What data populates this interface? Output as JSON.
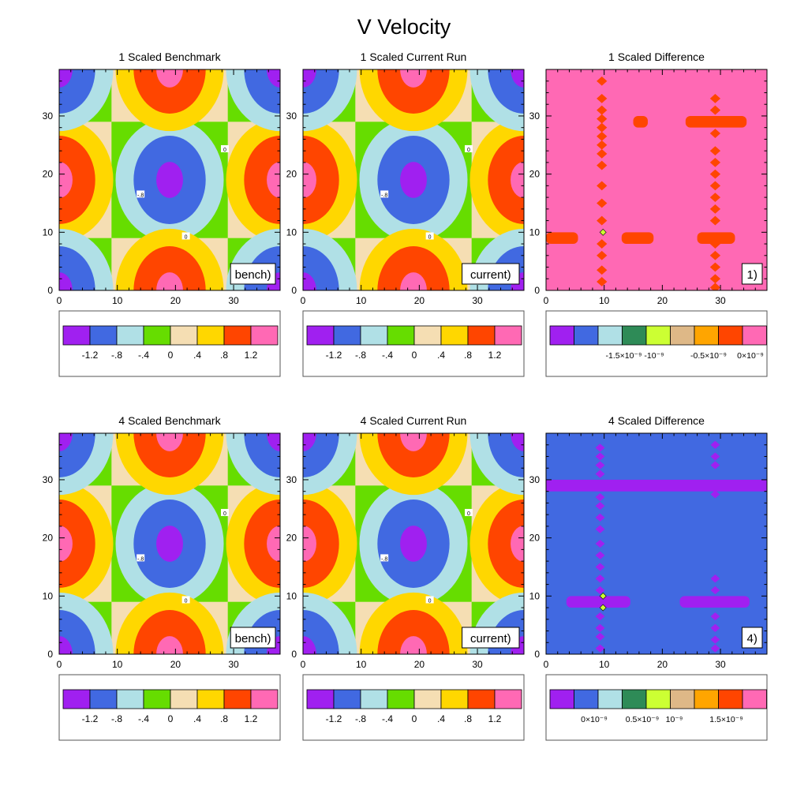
{
  "title": "V Velocity",
  "main_palette": [
    "#a020f0",
    "#4169e1",
    "#b0e0e6",
    "#66dd00",
    "#f5deb3",
    "#ffd700",
    "#ff4500",
    "#ff69b4"
  ],
  "main_tick_labels": [
    "-1.2",
    "-.8",
    "-.4",
    "0",
    ".4",
    ".8",
    "1.2"
  ],
  "diff_palette": [
    "#a020f0",
    "#4169e1",
    "#b0e0e6",
    "#2e8b57",
    "#ccff33",
    "#deb887",
    "#ffa500",
    "#ff4500",
    "#ff69b4"
  ],
  "chart_data": [
    {
      "type": "heatmap",
      "title": "1 Scaled Benchmark",
      "inset_label": "bench)",
      "xlim": [
        0,
        38
      ],
      "ylim": [
        0,
        38
      ],
      "xticks": [
        "0",
        "10",
        "20",
        "30"
      ],
      "yticks": [
        "0",
        "10",
        "20",
        "30"
      ],
      "field": "v_wave",
      "contour_labels": [
        "0",
        "-.8",
        "0"
      ],
      "colorbar": {
        "levels": [
          -1.2,
          -0.8,
          -0.4,
          0,
          0.4,
          0.8,
          1.2
        ],
        "labels": [
          "-1.2",
          "-.8",
          "-.4",
          "0",
          ".4",
          ".8",
          "1.2"
        ]
      }
    },
    {
      "type": "heatmap",
      "title": "1 Scaled Current Run",
      "inset_label": "current)",
      "xlim": [
        0,
        38
      ],
      "ylim": [
        0,
        38
      ],
      "xticks": [
        "0",
        "10",
        "20",
        "30"
      ],
      "yticks": [
        "0",
        "10",
        "20",
        "30"
      ],
      "field": "v_wave",
      "contour_labels": [
        "0",
        "-.8",
        "0"
      ],
      "colorbar": {
        "levels": [
          -1.2,
          -0.8,
          -0.4,
          0,
          0.4,
          0.8,
          1.2
        ],
        "labels": [
          "-1.2",
          "-.8",
          "-.4",
          "0",
          ".4",
          ".8",
          "1.2"
        ]
      }
    },
    {
      "type": "heatmap",
      "title": "1 Scaled Difference",
      "inset_label": "1)",
      "xlim": [
        0,
        38
      ],
      "ylim": [
        0,
        38
      ],
      "xticks": [
        "0",
        "10",
        "20",
        "30"
      ],
      "yticks": [
        "0",
        "10",
        "20",
        "30"
      ],
      "field": "difference",
      "background_value": 0,
      "colorbar": {
        "labels": [
          "-1.5×10⁻⁹",
          "-10⁻⁹",
          "-0.5×10⁻⁹",
          "0×10⁻⁹"
        ]
      }
    },
    {
      "type": "heatmap",
      "title": "4 Scaled Benchmark",
      "inset_label": "bench)",
      "xlim": [
        0,
        38
      ],
      "ylim": [
        0,
        38
      ],
      "xticks": [
        "0",
        "10",
        "20",
        "30"
      ],
      "yticks": [
        "0",
        "10",
        "20",
        "30"
      ],
      "field": "v_wave",
      "contour_labels": [
        "0",
        "-.8",
        "0"
      ],
      "colorbar": {
        "levels": [
          -1.2,
          -0.8,
          -0.4,
          0,
          0.4,
          0.8,
          1.2
        ],
        "labels": [
          "-1.2",
          "-.8",
          "-.4",
          "0",
          ".4",
          ".8",
          "1.2"
        ]
      }
    },
    {
      "type": "heatmap",
      "title": "4 Scaled Current Run",
      "inset_label": "current)",
      "xlim": [
        0,
        38
      ],
      "ylim": [
        0,
        38
      ],
      "xticks": [
        "0",
        "10",
        "20",
        "30"
      ],
      "yticks": [
        "0",
        "10",
        "20",
        "30"
      ],
      "field": "v_wave",
      "contour_labels": [
        "0",
        "-.8",
        "0"
      ],
      "colorbar": {
        "levels": [
          -1.2,
          -0.8,
          -0.4,
          0,
          0.4,
          0.8,
          1.2
        ],
        "labels": [
          "-1.2",
          "-.8",
          "-.4",
          "0",
          ".4",
          ".8",
          "1.2"
        ]
      }
    },
    {
      "type": "heatmap",
      "title": "4 Scaled Difference",
      "inset_label": "4)",
      "xlim": [
        0,
        38
      ],
      "ylim": [
        0,
        38
      ],
      "xticks": [
        "0",
        "10",
        "20",
        "30"
      ],
      "yticks": [
        "0",
        "10",
        "20",
        "30"
      ],
      "field": "difference",
      "background_value": 0,
      "colorbar": {
        "labels": [
          "0×10⁻⁹",
          "0.5×10⁻⁹",
          "10⁻⁹",
          "1.5×10⁻⁹"
        ]
      }
    }
  ]
}
